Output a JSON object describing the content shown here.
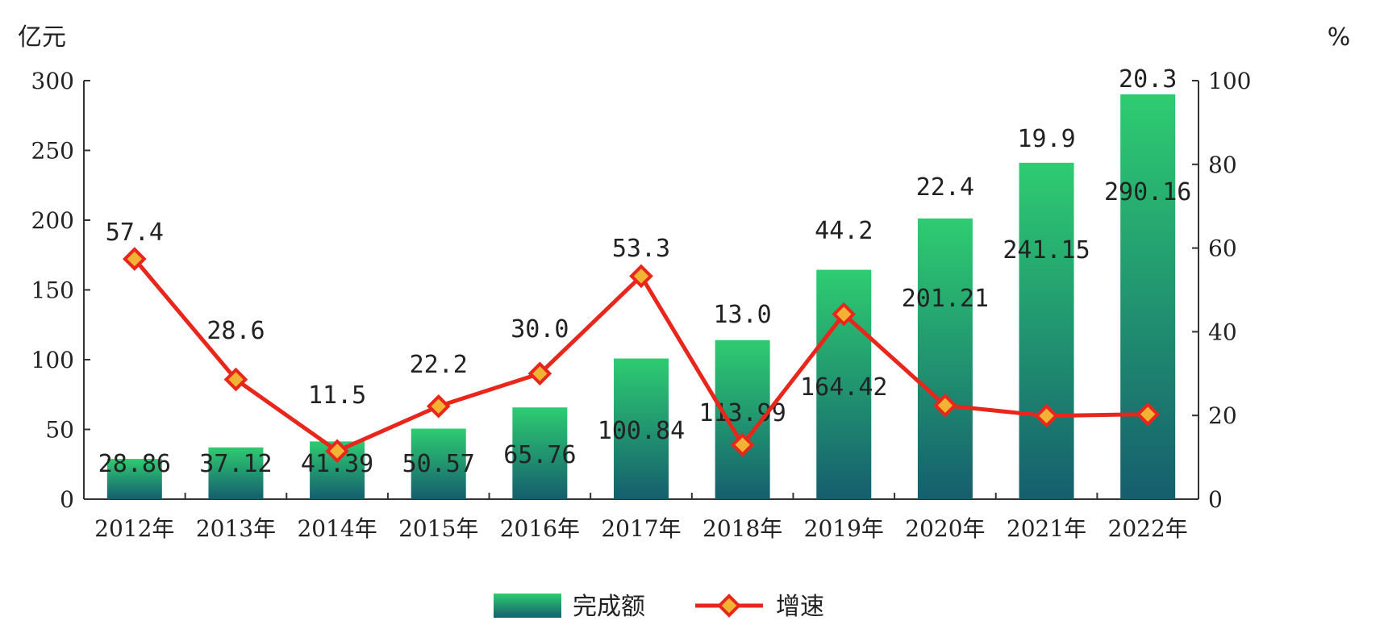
{
  "chart_data": {
    "type": "bar",
    "categories": [
      "2012年",
      "2013年",
      "2014年",
      "2015年",
      "2016年",
      "2017年",
      "2018年",
      "2019年",
      "2020年",
      "2021年",
      "2022年"
    ],
    "series": [
      {
        "name": "完成额",
        "type": "bar",
        "axis": "left",
        "values": [
          28.86,
          37.12,
          41.39,
          50.57,
          65.76,
          100.84,
          113.99,
          164.42,
          201.21,
          241.15,
          290.16
        ],
        "labels": [
          "28.86",
          "37.12",
          "41.39",
          "50.57",
          "65.76",
          "100.84",
          "113.99",
          "164.42",
          "201.21",
          "241.15",
          "290.16"
        ]
      },
      {
        "name": "增速",
        "type": "line",
        "axis": "right",
        "values": [
          57.4,
          28.6,
          11.5,
          22.2,
          30.0,
          53.3,
          13.0,
          44.2,
          22.4,
          19.9,
          20.3
        ],
        "labels": [
          "57.4",
          "28.6",
          "11.5",
          "22.2",
          "30.0",
          "53.3",
          "13.0",
          "44.2",
          "22.4",
          "19.9",
          "20.3"
        ]
      }
    ],
    "y_left": {
      "unit": "亿元",
      "min": 0,
      "max": 300,
      "ticks": [
        0,
        50,
        100,
        150,
        200,
        250,
        300
      ]
    },
    "y_right": {
      "unit": "%",
      "min": 0,
      "max": 100,
      "ticks": [
        0,
        20,
        40,
        60,
        80,
        100
      ]
    },
    "grid": false,
    "legend": "bottom-center",
    "colors": {
      "bar_top": "#2ecc71",
      "bar_bottom": "#155e6e",
      "line": "#e8261c",
      "marker_fill": "#f2b233",
      "marker_stroke": "#e8261c",
      "axis": "#333333"
    }
  }
}
